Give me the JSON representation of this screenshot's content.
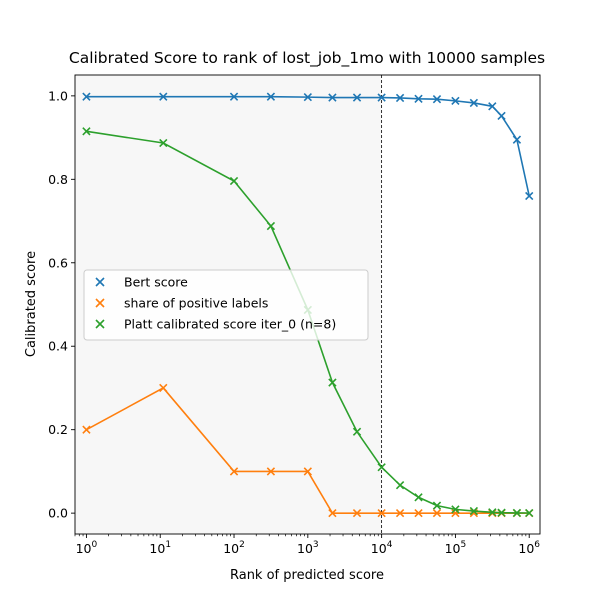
{
  "chart_data": {
    "type": "line",
    "title": "Calibrated Score to rank of lost_job_1mo with 10000 samples",
    "xlabel": "Rank of predicted score",
    "ylabel": "Calibrated score",
    "x_scale": "log",
    "xlim": [
      0.7,
      1400000
    ],
    "ylim": [
      -0.05,
      1.05
    ],
    "x_ticks": [
      {
        "value": 1,
        "base": "10",
        "exp": "0"
      },
      {
        "value": 10,
        "base": "10",
        "exp": "1"
      },
      {
        "value": 100,
        "base": "10",
        "exp": "2"
      },
      {
        "value": 1000,
        "base": "10",
        "exp": "3"
      },
      {
        "value": 10000,
        "base": "10",
        "exp": "4"
      },
      {
        "value": 100000,
        "base": "10",
        "exp": "5"
      },
      {
        "value": 1000000,
        "base": "10",
        "exp": "6"
      }
    ],
    "y_ticks": [
      {
        "value": 0.0,
        "label": "0.0"
      },
      {
        "value": 0.2,
        "label": "0.2"
      },
      {
        "value": 0.4,
        "label": "0.4"
      },
      {
        "value": 0.6,
        "label": "0.6"
      },
      {
        "value": 0.8,
        "label": "0.8"
      },
      {
        "value": 1.0,
        "label": "1.0"
      }
    ],
    "shaded_region_x": [
      0.7,
      10000
    ],
    "vline_x": 10000,
    "legend_position": "center-left",
    "series": [
      {
        "name": "Bert score",
        "color": "#1f77b4",
        "x": [
          1,
          11,
          100,
          316,
          1000,
          2154,
          4642,
          10000,
          17783,
          31623,
          56234,
          100000,
          177828,
          316228,
          421697,
          681292,
          1000000
        ],
        "y": [
          0.998,
          0.998,
          0.998,
          0.998,
          0.997,
          0.996,
          0.996,
          0.996,
          0.995,
          0.993,
          0.992,
          0.988,
          0.983,
          0.975,
          0.952,
          0.895,
          0.76
        ]
      },
      {
        "name": "share of positive labels",
        "color": "#ff7f0e",
        "x": [
          1,
          11,
          100,
          316,
          1000,
          2154,
          4642,
          10000,
          17783,
          31623,
          56234,
          100000,
          177828,
          316228,
          421697,
          681292,
          1000000
        ],
        "y": [
          0.2,
          0.3,
          0.1,
          0.1,
          0.1,
          0.0,
          0.0,
          0.0,
          0.0,
          0.0,
          0.0,
          0.0,
          0.0,
          0.0,
          0.0,
          0.0,
          0.0
        ]
      },
      {
        "name": "Platt calibrated score iter_0 (n=8)",
        "color": "#2ca02c",
        "x": [
          1,
          11,
          100,
          316,
          1000,
          2154,
          4642,
          10000,
          17783,
          31623,
          56234,
          100000,
          177828,
          316228,
          421697,
          681292,
          1000000
        ],
        "y": [
          0.915,
          0.887,
          0.796,
          0.688,
          0.487,
          0.313,
          0.195,
          0.11,
          0.067,
          0.038,
          0.018,
          0.009,
          0.005,
          0.002,
          0.001,
          0.0005,
          0.0003
        ]
      }
    ]
  }
}
